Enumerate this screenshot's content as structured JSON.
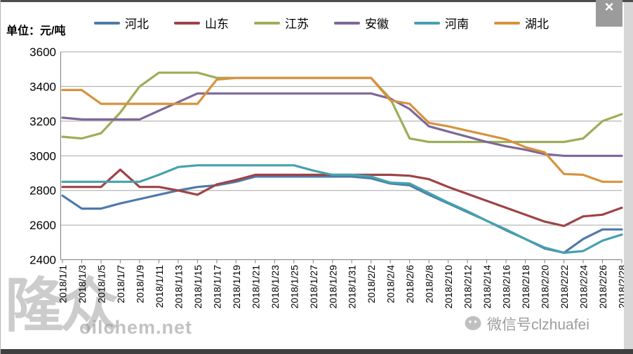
{
  "window": {
    "close_label": "×"
  },
  "unit_label": "单位：元/吨",
  "watermarks": {
    "logo_text": "隆众",
    "logo_site": "oilchem.net",
    "wechat_label": "微信号clzhuafei"
  },
  "chart_data": {
    "type": "line",
    "title": "",
    "ylabel": "元/吨",
    "ylim": [
      2400,
      3600
    ],
    "y_ticks": [
      3600,
      3400,
      3200,
      3000,
      2800,
      2600,
      2400
    ],
    "grid": true,
    "legend_position": "top",
    "x_labels": [
      "2018/1/1",
      "2018/1/3",
      "2018/1/5",
      "2018/1/7",
      "2018/1/9",
      "2018/1/11",
      "2018/1/13",
      "2018/1/15",
      "2018/1/17",
      "2018/1/19",
      "2018/1/21",
      "2018/1/23",
      "2018/1/25",
      "2018/1/27",
      "2018/1/29",
      "2018/1/31",
      "2018/2/2",
      "2018/2/4",
      "2018/2/6",
      "2018/2/8",
      "2018/2/10",
      "2018/2/12",
      "2018/2/14",
      "2018/2/16",
      "2018/2/18",
      "2018/2/20",
      "2018/2/22",
      "2018/2/24",
      "2018/2/26",
      "2018/2/28"
    ],
    "series": [
      {
        "name": "河北",
        "color": "#4f7aa9",
        "values": [
          2770,
          2695,
          2695,
          2725,
          2750,
          2775,
          2800,
          2820,
          2830,
          2850,
          2880,
          2880,
          2880,
          2880,
          2880,
          2880,
          2870,
          2840,
          2830,
          2775,
          2725,
          2675,
          2625,
          2570,
          2520,
          2465,
          2440,
          2520,
          2575,
          2575
        ]
      },
      {
        "name": "山东",
        "color": "#9e4348",
        "values": [
          2820,
          2820,
          2820,
          2920,
          2820,
          2820,
          2800,
          2775,
          2835,
          2860,
          2890,
          2890,
          2890,
          2890,
          2890,
          2890,
          2890,
          2890,
          2885,
          2865,
          2820,
          2780,
          2740,
          2700,
          2660,
          2620,
          2595,
          2650,
          2660,
          2700
        ]
      },
      {
        "name": "江苏",
        "color": "#9cae59",
        "values": [
          3110,
          3100,
          3130,
          3250,
          3400,
          3480,
          3480,
          3480,
          3450,
          3450,
          3450,
          3450,
          3450,
          3450,
          3450,
          3450,
          3450,
          3330,
          3100,
          3080,
          3080,
          3080,
          3080,
          3080,
          3080,
          3080,
          3080,
          3100,
          3200,
          3240
        ]
      },
      {
        "name": "安徽",
        "color": "#7d6899",
        "values": [
          3220,
          3210,
          3210,
          3210,
          3210,
          3260,
          3310,
          3360,
          3360,
          3360,
          3360,
          3360,
          3360,
          3360,
          3360,
          3360,
          3360,
          3330,
          3270,
          3170,
          3140,
          3110,
          3080,
          3055,
          3035,
          3010,
          3000,
          3000,
          3000,
          3000
        ]
      },
      {
        "name": "河南",
        "color": "#46a2ae",
        "values": [
          2850,
          2850,
          2850,
          2850,
          2850,
          2890,
          2935,
          2945,
          2945,
          2945,
          2945,
          2945,
          2945,
          2915,
          2890,
          2890,
          2880,
          2845,
          2840,
          2785,
          2730,
          2680,
          2625,
          2575,
          2520,
          2470,
          2440,
          2450,
          2510,
          2545
        ]
      },
      {
        "name": "湖北",
        "color": "#d8923e",
        "values": [
          3380,
          3380,
          3300,
          3300,
          3300,
          3300,
          3300,
          3300,
          3440,
          3450,
          3450,
          3450,
          3450,
          3450,
          3450,
          3450,
          3450,
          3320,
          3300,
          3190,
          3170,
          3145,
          3120,
          3095,
          3050,
          3020,
          2895,
          2890,
          2850,
          2850
        ]
      }
    ]
  }
}
